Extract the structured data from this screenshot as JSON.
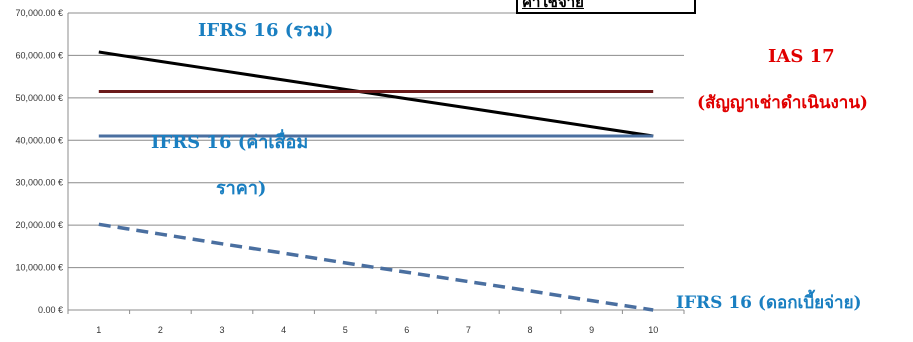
{
  "chart_data": {
    "type": "line",
    "x": [
      1,
      2,
      3,
      4,
      5,
      6,
      7,
      8,
      9,
      10
    ],
    "ylim": [
      0,
      70000
    ],
    "yticks": [
      "0.00 €",
      "10,000.00 €",
      "20,000.00 €",
      "30,000.00 €",
      "40,000.00 €",
      "50,000.00 €",
      "60,000.00 €",
      "70,000.00 €"
    ],
    "xticks": [
      "1",
      "2",
      "3",
      "4",
      "5",
      "6",
      "7",
      "8",
      "9",
      "10"
    ],
    "grid": true,
    "series": [
      {
        "name": "IFRS 16 (รวม)",
        "color": "#000000",
        "style": "solid",
        "values": [
          60800,
          58600,
          56400,
          54200,
          52000,
          49800,
          47600,
          45400,
          43200,
          41000
        ]
      },
      {
        "name": "IAS 17 (สัญญาเช่าดำเนินงาน)",
        "color": "#6b1a1a",
        "style": "solid",
        "values": [
          51500,
          51500,
          51500,
          51500,
          51500,
          51500,
          51500,
          51500,
          51500,
          51500
        ]
      },
      {
        "name": "IFRS 16 (ค่าเสื่อมราคา)",
        "color": "#4a6fa0",
        "style": "solid",
        "values": [
          41000,
          41000,
          41000,
          41000,
          41000,
          41000,
          41000,
          41000,
          41000,
          41000
        ]
      },
      {
        "name": "IFRS 16 (ดอกเบี้ยจ่าย)",
        "color": "#4a6fa0",
        "style": "dashed",
        "values": [
          20200,
          17900,
          15600,
          13400,
          11100,
          8900,
          6700,
          4500,
          2200,
          0
        ]
      }
    ],
    "annotations": {
      "total": "IFRS 16 (รวม)",
      "ias17_line1": "IAS 17",
      "ias17_line2": "(สัญญาเช่าดำเนินงาน)",
      "dep_line1": "IFRS 16 (ค่าเสื่อม",
      "dep_line2": "ราคา)",
      "interest": "IFRS 16 (ดอกเบี้ยจ่าย)",
      "top_box": "ค่าใช้จ่าย",
      "colors": {
        "blue_label": "#1a7fc1",
        "red_label": "#e00000"
      }
    }
  }
}
